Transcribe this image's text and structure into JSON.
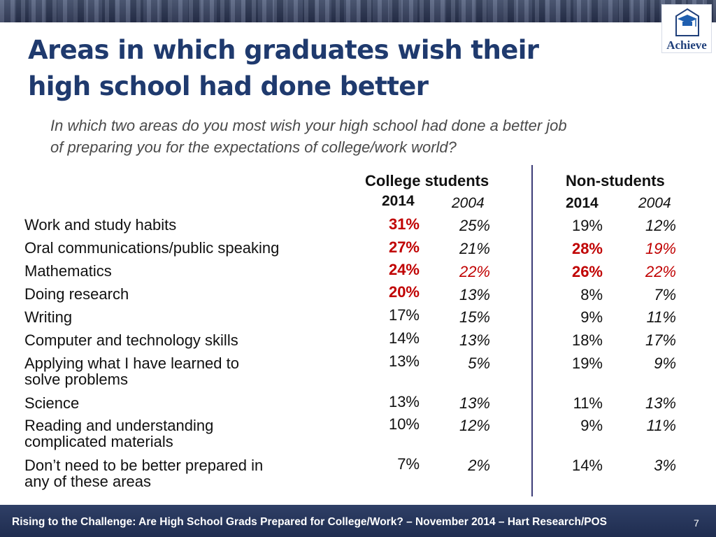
{
  "slide": {
    "title_line1": "Areas in which graduates wish their",
    "title_line2": "high school had done better",
    "subtitle_line1": "In which two areas do you most wish your high school had done a better job",
    "subtitle_line2": "of preparing you for the expectations of college/work world?",
    "logo_text": "Achieve",
    "footer": "Rising to the Challenge:  Are High School Grads Prepared for College/Work? – November 2014 – Hart Research/POS",
    "page_number": "7"
  },
  "table": {
    "groups": [
      "College students",
      "Non-students"
    ],
    "years": [
      "2014",
      "2004",
      "2014",
      "2004"
    ],
    "rows": [
      {
        "label1": "Work and study habits",
        "label2": "",
        "values": [
          "31%",
          "25%",
          "19%",
          "12%"
        ]
      },
      {
        "label1": "Oral communications/public speaking",
        "label2": "",
        "values": [
          "27%",
          "21%",
          "28%",
          "19%"
        ]
      },
      {
        "label1": "Mathematics",
        "label2": "",
        "values": [
          "24%",
          "22%",
          "26%",
          "22%"
        ]
      },
      {
        "label1": "Doing research",
        "label2": "",
        "values": [
          "20%",
          "13%",
          "8%",
          "7%"
        ]
      },
      {
        "label1": "Writing",
        "label2": "",
        "values": [
          "17%",
          "15%",
          "9%",
          "11%"
        ]
      },
      {
        "label1": "Computer and technology skills",
        "label2": "",
        "values": [
          "14%",
          "13%",
          "18%",
          "17%"
        ]
      },
      {
        "label1": "Applying what I have learned to",
        "label2": "solve problems",
        "values": [
          "13%",
          "5%",
          "19%",
          "9%"
        ]
      },
      {
        "label1": "Science",
        "label2": "",
        "values": [
          "13%",
          "13%",
          "11%",
          "13%"
        ]
      },
      {
        "label1": "Reading and understanding",
        "label2": "complicated materials",
        "values": [
          "10%",
          "12%",
          "9%",
          "11%"
        ]
      },
      {
        "label1": "Don’t need to be better prepared in",
        "label2": "any of these areas",
        "values": [
          "7%",
          "2%",
          "14%",
          "3%"
        ]
      }
    ]
  },
  "colors": {
    "title": "#1f3a6e",
    "highlight_red": "#c00000",
    "footer_bg": "#243358"
  }
}
